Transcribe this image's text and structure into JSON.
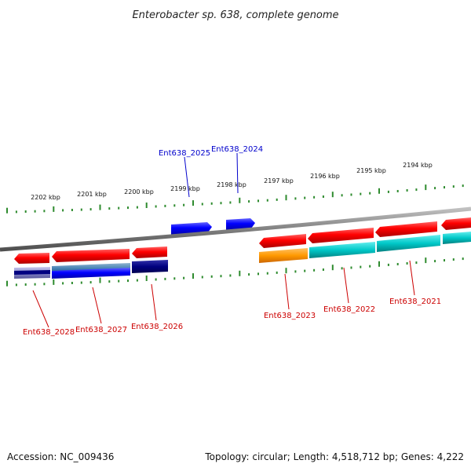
{
  "title": "Enterobacter sp. 638, complete genome",
  "footer": {
    "accession": "Accession: NC_009436",
    "summary": "Topology: circular; Length: 4,518,712 bp; Genes: 4,222"
  },
  "ticks": [
    {
      "label": "2202 kbp"
    },
    {
      "label": "2201 kbp"
    },
    {
      "label": "2200 kbp"
    },
    {
      "label": "2199 kbp"
    },
    {
      "label": "2198 kbp"
    },
    {
      "label": "2197 kbp"
    },
    {
      "label": "2196 kbp"
    },
    {
      "label": "2195 kbp"
    },
    {
      "label": "2194 kbp"
    }
  ],
  "genes_forward": [
    {
      "name": "Ent638_2025",
      "color": "#0000cc"
    },
    {
      "name": "Ent638_2024",
      "color": "#0000cc"
    }
  ],
  "genes_reverse": [
    {
      "name": "Ent638_2028",
      "color": "#cc0000"
    },
    {
      "name": "Ent638_2027",
      "color": "#cc0000"
    },
    {
      "name": "Ent638_2026",
      "color": "#cc0000"
    },
    {
      "name": "Ent638_2023",
      "color": "#cc0000"
    },
    {
      "name": "Ent638_2022",
      "color": "#cc0000"
    },
    {
      "name": "Ent638_2021",
      "color": "#cc0000"
    }
  ],
  "colors": {
    "backbone": "#808080",
    "tick": "#2e8b2e",
    "cds_reverse": "#ff0000",
    "cds_forward": "#0000ff",
    "orange": "#ff9900",
    "cyan": "#00c8c8",
    "navy": "#000080"
  }
}
